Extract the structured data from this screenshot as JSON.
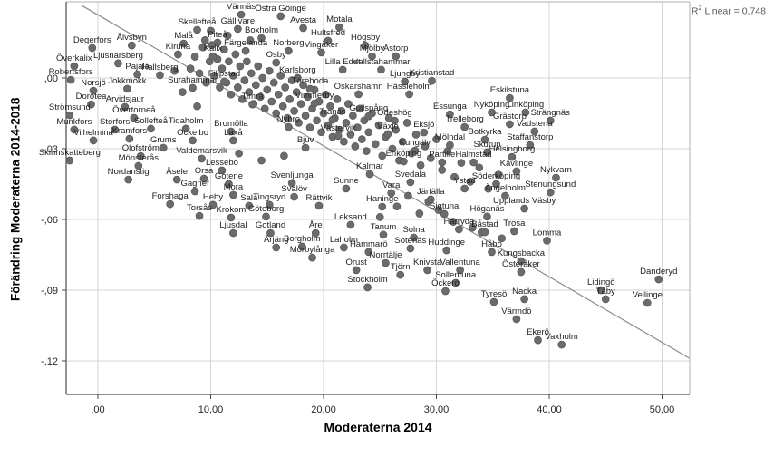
{
  "annotation": {
    "r2_base": "R",
    "r2_sup": "2",
    "r2_rest": " Linear = 0,748"
  },
  "colors": {
    "dot": "#6b6b6b",
    "dot_stroke": "#585858",
    "label": "#212121",
    "grid": "#d6d6d6",
    "frame": "#b0b0b0",
    "axis": "#4a4a4a",
    "tick_label": "#262626",
    "regression": "#8c8c8c",
    "annotation": "#595959"
  },
  "chart_data": {
    "type": "scatter",
    "xlabel": "Moderaterna 2014",
    "ylabel": "Förändring Moderaterna 2014-2018",
    "xlim": [
      -2.8,
      52.4
    ],
    "ylim": [
      -0.134,
      0.0323
    ],
    "grid": true,
    "r2_linear": "0,748",
    "x_ticks": [
      {
        "v": 0,
        "label": ",00"
      },
      {
        "v": 10,
        "label": "10,00"
      },
      {
        "v": 20,
        "label": "20,00"
      },
      {
        "v": 30,
        "label": "30,00"
      },
      {
        "v": 40,
        "label": "40,00"
      },
      {
        "v": 50,
        "label": "50,00"
      }
    ],
    "y_ticks": [
      {
        "v": 0,
        "label": ",00"
      },
      {
        "v": -0.03,
        "label": "-,03"
      },
      {
        "v": -0.06,
        "label": "-,06"
      },
      {
        "v": -0.09,
        "label": "-,09"
      },
      {
        "v": -0.12,
        "label": "-,12"
      }
    ],
    "regression_line": {
      "x1": -1.45,
      "y1": 0.0308,
      "x2": 52.4,
      "y2": -0.1188
    },
    "points": [
      {
        "n": "Vännäs",
        "x": 12.7,
        "y": 0.0269
      },
      {
        "n": "Östra Göinge",
        "x": 16.2,
        "y": 0.0262
      },
      {
        "n": "Skellefteå",
        "x": 8.8,
        "y": 0.0204
      },
      {
        "n": "Gällivare",
        "x": 12.4,
        "y": 0.0208
      },
      {
        "n": "Avesta",
        "x": 18.2,
        "y": 0.0212
      },
      {
        "n": "Motala",
        "x": 21.4,
        "y": 0.0215
      },
      {
        "n": "Malå",
        "x": 7.6,
        "y": 0.0146
      },
      {
        "n": "Piteå",
        "x": 10.6,
        "y": 0.015
      },
      {
        "n": "Boxholm",
        "x": 14.5,
        "y": 0.0169
      },
      {
        "n": "Hultsfred",
        "x": 20.4,
        "y": 0.0158
      },
      {
        "n": "Högsby",
        "x": 23.7,
        "y": 0.0138
      },
      {
        "n": "Degerfors",
        "x": -0.5,
        "y": 0.0127
      },
      {
        "n": "Älvsbyn",
        "x": 3.0,
        "y": 0.0138
      },
      {
        "n": "Kiruna",
        "x": 7.1,
        "y": 0.01
      },
      {
        "n": "Kalix",
        "x": 10.2,
        "y": 0.0092
      },
      {
        "n": "Färgelanda",
        "x": 13.1,
        "y": 0.0115
      },
      {
        "n": "Norberg",
        "x": 16.9,
        "y": 0.0115
      },
      {
        "n": "Vingåker",
        "x": 19.8,
        "y": 0.0108
      },
      {
        "n": "Mjölby",
        "x": 24.3,
        "y": 0.0092
      },
      {
        "n": "Åstorp",
        "x": 26.4,
        "y": 0.0092
      },
      {
        "n": "Överkalix",
        "x": -2.1,
        "y": 0.005
      },
      {
        "n": "Ljusnarsberg",
        "x": 1.8,
        "y": 0.0062
      },
      {
        "n": "Osby",
        "x": 15.8,
        "y": 0.0065
      },
      {
        "n": "Lilla Edet",
        "x": 21.7,
        "y": 0.0035
      },
      {
        "n": "Hallstahammar",
        "x": 25.1,
        "y": 0.0035
      },
      {
        "n": "Robertsfors",
        "x": -2.4,
        "y": -0.0008
      },
      {
        "n": "Pajala",
        "x": 3.5,
        "y": 0.0015
      },
      {
        "n": "Hallsberg",
        "x": 5.5,
        "y": 0.0012
      },
      {
        "n": "Karlsborg",
        "x": 17.7,
        "y": 0.0
      },
      {
        "n": "Ljungby",
        "x": 27.2,
        "y": -0.0015
      },
      {
        "n": "Kristianstad",
        "x": 29.6,
        "y": -0.0012
      },
      {
        "n": "Norsjö",
        "x": -0.4,
        "y": -0.0054
      },
      {
        "n": "Jokkmokk",
        "x": 2.6,
        "y": -0.0046
      },
      {
        "n": "Surahammar",
        "x": 8.4,
        "y": -0.0042
      },
      {
        "n": "Filipstad",
        "x": 11.2,
        "y": -0.0015
      },
      {
        "n": "Töreboda",
        "x": 18.8,
        "y": -0.0046
      },
      {
        "n": "Oskarshamn",
        "x": 23.1,
        "y": -0.0069
      },
      {
        "n": "Hässleholm",
        "x": 27.6,
        "y": -0.0069
      },
      {
        "n": "Eskilstuna",
        "x": 36.5,
        "y": -0.0085
      },
      {
        "n": "Dorotea",
        "x": -0.6,
        "y": -0.0112
      },
      {
        "n": "Arvidsjaur",
        "x": 2.4,
        "y": -0.0123
      },
      {
        "n": "Timrå",
        "x": 13.7,
        "y": -0.0112
      },
      {
        "n": "Vimmerby",
        "x": 19.2,
        "y": -0.0108
      },
      {
        "n": "Essunga",
        "x": 31.2,
        "y": -0.0154
      },
      {
        "n": "Nyköping",
        "x": 34.9,
        "y": -0.0146
      },
      {
        "n": "Linköping",
        "x": 37.9,
        "y": -0.0146
      },
      {
        "n": "Strömsund",
        "x": -2.5,
        "y": -0.0158
      },
      {
        "n": "Övertorneå",
        "x": 3.2,
        "y": -0.0169
      },
      {
        "n": "Gullspång",
        "x": 24.0,
        "y": -0.0162
      },
      {
        "n": "Tranås",
        "x": 20.8,
        "y": -0.0177
      },
      {
        "n": "Ödeshög",
        "x": 26.3,
        "y": -0.0181
      },
      {
        "n": "Strängnäs",
        "x": 40.1,
        "y": -0.0181
      },
      {
        "n": "Munkfors",
        "x": -2.1,
        "y": -0.0219
      },
      {
        "n": "Storfors",
        "x": 1.5,
        "y": -0.0219
      },
      {
        "n": "Sollefteå",
        "x": 4.7,
        "y": -0.0215
      },
      {
        "n": "Tidaholm",
        "x": 7.8,
        "y": -0.0215
      },
      {
        "n": "Bromölla",
        "x": 11.8,
        "y": -0.0227
      },
      {
        "n": "Nybro",
        "x": 16.9,
        "y": -0.0208
      },
      {
        "n": "Eksjö",
        "x": 28.9,
        "y": -0.0231
      },
      {
        "n": "Trelleborg",
        "x": 32.5,
        "y": -0.0208
      },
      {
        "n": "Grästorp",
        "x": 36.5,
        "y": -0.0196
      },
      {
        "n": "Vadstena",
        "x": 38.7,
        "y": -0.0227
      },
      {
        "n": "Vilhelmina",
        "x": -0.4,
        "y": -0.0265
      },
      {
        "n": "Kramfors",
        "x": 2.8,
        "y": -0.0258
      },
      {
        "n": "Ockelbo",
        "x": 8.4,
        "y": -0.0265
      },
      {
        "n": "Laxå",
        "x": 12.0,
        "y": -0.0265
      },
      {
        "n": "Västervik",
        "x": 21.3,
        "y": -0.0246
      },
      {
        "n": "Växjö",
        "x": 25.7,
        "y": -0.0238
      },
      {
        "n": "Grums",
        "x": 5.8,
        "y": -0.0296
      },
      {
        "n": "Bjuv",
        "x": 18.4,
        "y": -0.0296
      },
      {
        "n": "Kungälv",
        "x": 28.1,
        "y": -0.0308
      },
      {
        "n": "Mölndal",
        "x": 31.2,
        "y": -0.0285
      },
      {
        "n": "Botkyrka",
        "x": 34.3,
        "y": -0.0262
      },
      {
        "n": "Skurup",
        "x": 34.5,
        "y": -0.0315
      },
      {
        "n": "Staffanstorp",
        "x": 38.3,
        "y": -0.0285
      },
      {
        "n": "Skinnskatteberg",
        "x": -2.5,
        "y": -0.035
      },
      {
        "n": "Olofström",
        "x": 3.8,
        "y": -0.0331
      },
      {
        "n": "Valdemarsvik",
        "x": 9.2,
        "y": -0.0342
      },
      {
        "n": "Helsingborg",
        "x": 36.7,
        "y": -0.0335
      },
      {
        "n": "Mönsterås",
        "x": 3.6,
        "y": -0.0373
      },
      {
        "n": "Lessebo",
        "x": 11.0,
        "y": -0.0392
      },
      {
        "n": "Enköping",
        "x": 27.1,
        "y": -0.0354
      },
      {
        "n": "Partille",
        "x": 30.5,
        "y": -0.0358
      },
      {
        "n": "Halmstad",
        "x": 33.3,
        "y": -0.0358
      },
      {
        "n": "Nordanstig",
        "x": 2.7,
        "y": -0.0431
      },
      {
        "n": "Åsele",
        "x": 7.0,
        "y": -0.0431
      },
      {
        "n": "Orsa",
        "x": 9.4,
        "y": -0.0427
      },
      {
        "n": "Götene",
        "x": 11.6,
        "y": -0.045
      },
      {
        "n": "Kävlinge",
        "x": 37.1,
        "y": -0.0396
      },
      {
        "n": "Nykvarn",
        "x": 40.6,
        "y": -0.0423
      },
      {
        "n": "Kalmar",
        "x": 24.1,
        "y": -0.0408
      },
      {
        "n": "Svenljunga",
        "x": 17.2,
        "y": -0.0446
      },
      {
        "n": "Sunne",
        "x": 22.0,
        "y": -0.0469
      },
      {
        "n": "Vara",
        "x": 26.0,
        "y": -0.0488
      },
      {
        "n": "Svedala",
        "x": 27.7,
        "y": -0.0442
      },
      {
        "n": "Ystad",
        "x": 32.5,
        "y": -0.0469
      },
      {
        "n": "Söderköping",
        "x": 35.3,
        "y": -0.045
      },
      {
        "n": "Gagnef",
        "x": 8.6,
        "y": -0.0481
      },
      {
        "n": "Mora",
        "x": 12.0,
        "y": -0.0496
      },
      {
        "n": "Svalöv",
        "x": 17.4,
        "y": -0.0504
      },
      {
        "n": "Järfälla",
        "x": 29.5,
        "y": -0.0515
      },
      {
        "n": "Ängelholm",
        "x": 36.1,
        "y": -0.05
      },
      {
        "n": "Stenungsund",
        "x": 40.1,
        "y": -0.0485
      },
      {
        "n": "Forshaga",
        "x": 6.4,
        "y": -0.0535
      },
      {
        "n": "Heby",
        "x": 10.2,
        "y": -0.0538
      },
      {
        "n": "Sala",
        "x": 13.4,
        "y": -0.0542
      },
      {
        "n": "Tingsryd",
        "x": 15.2,
        "y": -0.0538
      },
      {
        "n": "Rättvik",
        "x": 19.6,
        "y": -0.0542
      },
      {
        "n": "Haninge",
        "x": 25.2,
        "y": -0.0546
      },
      {
        "n": "Upplands Väsby",
        "x": 37.8,
        "y": -0.0554
      },
      {
        "n": "Torsås",
        "x": 9.0,
        "y": -0.0585
      },
      {
        "n": "Krokom",
        "x": 11.8,
        "y": -0.0592
      },
      {
        "n": "Göteborg",
        "x": 14.9,
        "y": -0.0588
      },
      {
        "n": "Sigtuna",
        "x": 30.7,
        "y": -0.0577
      },
      {
        "n": "Höganäs",
        "x": 34.5,
        "y": -0.0588
      },
      {
        "n": "Leksand",
        "x": 22.4,
        "y": -0.0623
      },
      {
        "n": "Härryda",
        "x": 32.0,
        "y": -0.0642
      },
      {
        "n": "Ljusdal",
        "x": 12.0,
        "y": -0.0658
      },
      {
        "n": "Gotland",
        "x": 15.3,
        "y": -0.0658
      },
      {
        "n": "Åre",
        "x": 19.3,
        "y": -0.0658
      },
      {
        "n": "Tanum",
        "x": 25.3,
        "y": -0.0665
      },
      {
        "n": "Solna",
        "x": 28.0,
        "y": -0.0677
      },
      {
        "n": "Båstad",
        "x": 34.3,
        "y": -0.0654
      },
      {
        "n": "Trosa",
        "x": 36.9,
        "y": -0.065
      },
      {
        "n": "Lomma",
        "x": 39.8,
        "y": -0.069
      },
      {
        "n": "Årjäng",
        "x": 15.8,
        "y": -0.0719
      },
      {
        "n": "Borgholm",
        "x": 18.1,
        "y": -0.0715
      },
      {
        "n": "Laholm",
        "x": 21.8,
        "y": -0.0719
      },
      {
        "n": "Hammarö",
        "x": 24.0,
        "y": -0.0738
      },
      {
        "n": "Sotenäs",
        "x": 27.7,
        "y": -0.0723
      },
      {
        "n": "Huddinge",
        "x": 30.9,
        "y": -0.0731
      },
      {
        "n": "Håbo",
        "x": 34.9,
        "y": -0.0738
      },
      {
        "n": "Mörbylånga",
        "x": 19.0,
        "y": -0.0762
      },
      {
        "n": "Norrtälje",
        "x": 25.5,
        "y": -0.0785
      },
      {
        "n": "Orust",
        "x": 22.9,
        "y": -0.0815
      },
      {
        "n": "Tjörn",
        "x": 26.8,
        "y": -0.0835
      },
      {
        "n": "Knivsta",
        "x": 29.2,
        "y": -0.0815
      },
      {
        "n": "Vallentuna",
        "x": 32.1,
        "y": -0.0815
      },
      {
        "n": "Stockholm",
        "x": 23.9,
        "y": -0.0888
      },
      {
        "n": "Sollentuna",
        "x": 31.7,
        "y": -0.0869
      },
      {
        "n": "Öckerö",
        "x": 30.8,
        "y": -0.0904
      },
      {
        "n": "Kungsbacka",
        "x": 37.5,
        "y": -0.0777
      },
      {
        "n": "Österåker",
        "x": 37.5,
        "y": -0.0823
      },
      {
        "n": "Tyresö",
        "x": 35.1,
        "y": -0.095
      },
      {
        "n": "Nacka",
        "x": 37.8,
        "y": -0.0938
      },
      {
        "n": "Värmdö",
        "x": 37.1,
        "y": -0.1023
      },
      {
        "n": "Ekerö",
        "x": 39.0,
        "y": -0.1112
      },
      {
        "n": "Vaxholm",
        "x": 41.1,
        "y": -0.1131
      },
      {
        "n": "Lidingö",
        "x": 44.6,
        "y": -0.09
      },
      {
        "n": "Täby",
        "x": 45.0,
        "y": -0.0938
      },
      {
        "n": "Vellinge",
        "x": 48.7,
        "y": -0.0954
      },
      {
        "n": "Danderyd",
        "x": 49.7,
        "y": -0.0854
      }
    ],
    "unlabeled_points": [
      [
        8.2,
        0.004
      ],
      [
        8.6,
        0.009
      ],
      [
        9.0,
        0.002
      ],
      [
        9.3,
        0.013
      ],
      [
        9.6,
        -0.002
      ],
      [
        9.9,
        0.007
      ],
      [
        10.1,
        0.014
      ],
      [
        10.3,
        0.001
      ],
      [
        10.6,
        0.008
      ],
      [
        10.8,
        -0.004
      ],
      [
        11.0,
        0.004
      ],
      [
        11.2,
        0.012
      ],
      [
        11.4,
        -0.002
      ],
      [
        11.6,
        0.007
      ],
      [
        11.8,
        -0.007
      ],
      [
        12.0,
        0.001
      ],
      [
        12.2,
        0.01
      ],
      [
        12.4,
        -0.004
      ],
      [
        12.6,
        0.005
      ],
      [
        12.8,
        -0.009
      ],
      [
        13.0,
        -0.001
      ],
      [
        13.2,
        0.007
      ],
      [
        13.4,
        -0.006
      ],
      [
        13.6,
        0.002
      ],
      [
        13.8,
        -0.011
      ],
      [
        14.0,
        -0.003
      ],
      [
        14.2,
        0.005
      ],
      [
        14.4,
        -0.008
      ],
      [
        14.6,
        0.0
      ],
      [
        14.8,
        -0.013
      ],
      [
        15.0,
        -0.005
      ],
      [
        15.2,
        0.003
      ],
      [
        15.4,
        -0.01
      ],
      [
        15.6,
        -0.002
      ],
      [
        15.8,
        -0.015
      ],
      [
        16.0,
        -0.007
      ],
      [
        16.2,
        0.001
      ],
      [
        16.4,
        -0.012
      ],
      [
        16.6,
        -0.004
      ],
      [
        16.8,
        -0.017
      ],
      [
        17.0,
        -0.009
      ],
      [
        17.2,
        -0.001
      ],
      [
        17.4,
        -0.014
      ],
      [
        17.6,
        -0.006
      ],
      [
        17.8,
        -0.019
      ],
      [
        18.0,
        -0.011
      ],
      [
        18.2,
        -0.003
      ],
      [
        18.4,
        -0.016
      ],
      [
        18.6,
        -0.008
      ],
      [
        18.8,
        -0.021
      ],
      [
        19.0,
        -0.013
      ],
      [
        19.2,
        -0.005
      ],
      [
        19.4,
        -0.018
      ],
      [
        19.6,
        -0.01
      ],
      [
        19.8,
        -0.023
      ],
      [
        20.0,
        -0.015
      ],
      [
        20.2,
        -0.007
      ],
      [
        20.4,
        -0.02
      ],
      [
        20.6,
        -0.012
      ],
      [
        20.8,
        -0.025
      ],
      [
        21.0,
        -0.017
      ],
      [
        21.2,
        -0.009
      ],
      [
        21.4,
        -0.022
      ],
      [
        21.6,
        -0.014
      ],
      [
        21.8,
        -0.027
      ],
      [
        22.0,
        -0.019
      ],
      [
        22.2,
        -0.011
      ],
      [
        22.4,
        -0.024
      ],
      [
        22.6,
        -0.016
      ],
      [
        22.8,
        -0.029
      ],
      [
        23.0,
        -0.021
      ],
      [
        23.2,
        -0.013
      ],
      [
        23.4,
        -0.026
      ],
      [
        23.6,
        -0.018
      ],
      [
        23.8,
        -0.031
      ],
      [
        24.0,
        -0.023
      ],
      [
        24.3,
        -0.015
      ],
      [
        24.6,
        -0.028
      ],
      [
        24.9,
        -0.02
      ],
      [
        25.2,
        -0.033
      ],
      [
        25.5,
        -0.025
      ],
      [
        25.8,
        -0.017
      ],
      [
        26.1,
        -0.03
      ],
      [
        26.4,
        -0.022
      ],
      [
        26.7,
        -0.035
      ],
      [
        27.0,
        -0.027
      ],
      [
        27.4,
        -0.019
      ],
      [
        27.8,
        -0.032
      ],
      [
        28.2,
        -0.024
      ],
      [
        28.6,
        -0.037
      ],
      [
        29.0,
        -0.029
      ],
      [
        29.5,
        -0.034
      ],
      [
        30.0,
        -0.026
      ],
      [
        30.5,
        -0.039
      ],
      [
        31.0,
        -0.031
      ],
      [
        31.6,
        -0.042
      ],
      [
        32.2,
        -0.036
      ],
      [
        33.0,
        -0.044
      ],
      [
        33.8,
        -0.038
      ],
      [
        34.6,
        -0.047
      ],
      [
        35.5,
        -0.041
      ],
      [
        9.5,
        0.016
      ],
      [
        11.5,
        0.018
      ],
      [
        13.5,
        0.016
      ],
      [
        10.0,
        0.02
      ],
      [
        27.5,
        -0.05
      ],
      [
        29.3,
        -0.0525
      ],
      [
        30.2,
        -0.056
      ],
      [
        31.5,
        -0.061
      ],
      [
        33.2,
        -0.0635
      ],
      [
        34.0,
        -0.0655
      ],
      [
        35.8,
        -0.068
      ],
      [
        28.5,
        -0.0575
      ],
      [
        26.5,
        -0.0545
      ],
      [
        25.0,
        -0.059
      ],
      [
        12.5,
        -0.032
      ],
      [
        14.5,
        -0.035
      ],
      [
        16.5,
        -0.033
      ],
      [
        8.8,
        -0.012
      ],
      [
        7.5,
        -0.006
      ],
      [
        6.8,
        0.003
      ]
    ]
  }
}
